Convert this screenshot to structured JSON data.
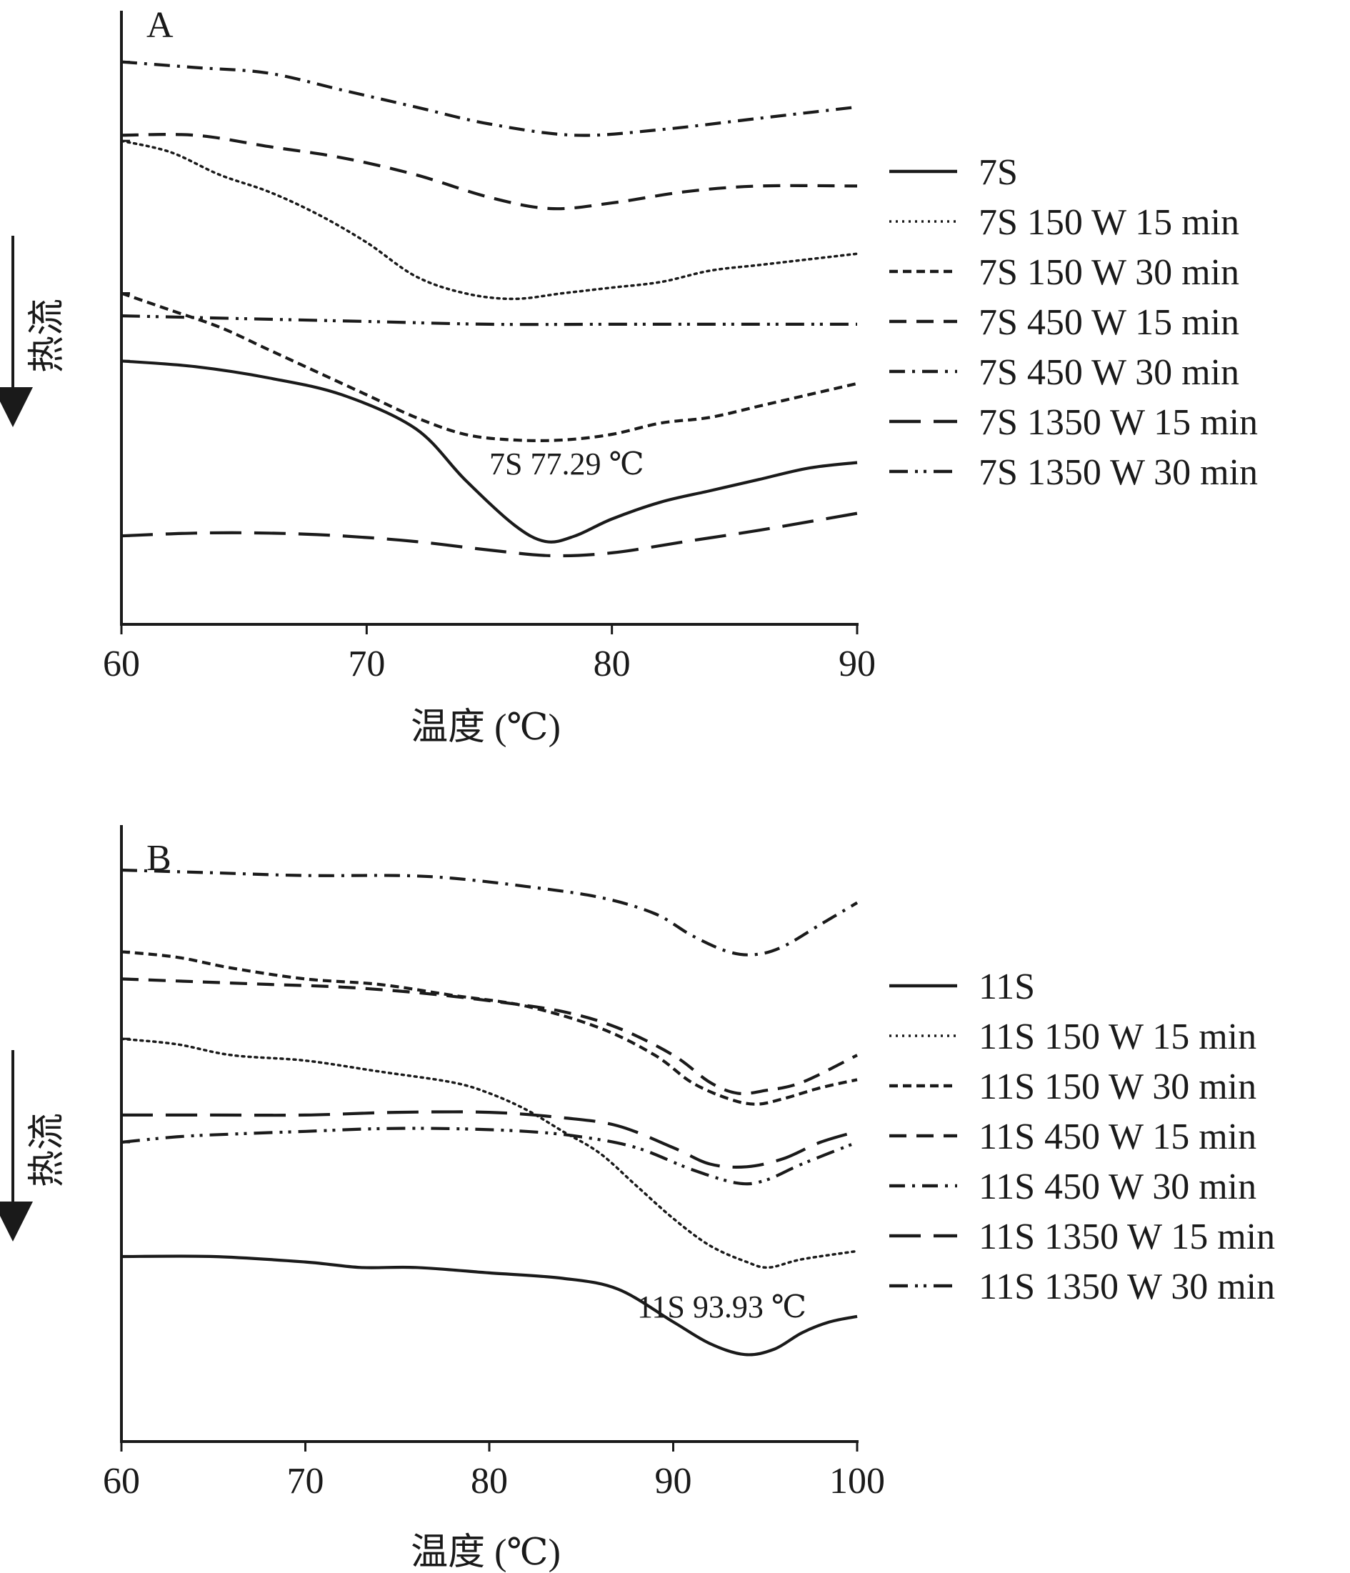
{
  "chart_data": [
    {
      "panel": "A",
      "type": "line",
      "xlabel": "温度 (℃)",
      "ylabel": "热流",
      "xlim": [
        60,
        90
      ],
      "xticks": [
        60,
        70,
        80,
        90
      ],
      "y_units": "arbitrary (relative heat flow, downward = endothermic)",
      "ylim": [
        0,
        100
      ],
      "annotation": "7S 77.29 ℃",
      "legend_position": "right",
      "series": [
        {
          "name": "7S",
          "style": "solid",
          "x": [
            60,
            63,
            66,
            69,
            72,
            74,
            76,
            77.3,
            78.5,
            80,
            82,
            84,
            86,
            88,
            90
          ],
          "y": [
            43,
            42,
            40,
            37,
            31,
            22,
            14,
            11,
            12,
            15,
            18,
            20,
            22,
            24,
            25
          ]
        },
        {
          "name": "7S 150 W 15 min",
          "style": "dotted",
          "x": [
            60,
            62,
            64,
            66,
            68,
            70,
            72,
            74,
            76,
            78,
            80,
            82,
            84,
            86,
            88,
            90
          ],
          "y": [
            82,
            80,
            76,
            73,
            69,
            64,
            58,
            55,
            54,
            55,
            56,
            57,
            59,
            60,
            61,
            62
          ]
        },
        {
          "name": "7S 150 W 30 min",
          "style": "short-dash",
          "x": [
            60,
            62,
            64,
            66,
            68,
            70,
            72,
            74,
            76,
            78,
            80,
            82,
            84,
            86,
            88,
            90
          ],
          "y": [
            55,
            52,
            49,
            45,
            41,
            37,
            33,
            30,
            29,
            29,
            30,
            32,
            33,
            35,
            37,
            39
          ]
        },
        {
          "name": "7S 450 W 15 min",
          "style": "dash",
          "x": [
            60,
            63,
            66,
            69,
            72,
            75,
            77.5,
            80,
            83,
            86,
            90
          ],
          "y": [
            83,
            83,
            81,
            79,
            76,
            72,
            70,
            71,
            73,
            74,
            74
          ]
        },
        {
          "name": "7S 450 W 30 min",
          "style": "dash-dot",
          "x": [
            60,
            63,
            66,
            69,
            72,
            75,
            78.5,
            82,
            86,
            90
          ],
          "y": [
            96,
            95,
            94,
            91,
            88,
            85,
            83,
            84,
            86,
            88
          ]
        },
        {
          "name": "7S 1350 W 15 min",
          "style": "long-dash",
          "x": [
            60,
            63,
            66,
            69,
            72,
            75,
            77.5,
            80,
            83,
            86,
            90
          ],
          "y": [
            12,
            12.5,
            12.5,
            12,
            11,
            9.5,
            8.5,
            9,
            11,
            13,
            16
          ]
        },
        {
          "name": "7S 1350 W 30 min",
          "style": "dash-dot-dot",
          "x": [
            60,
            65,
            70,
            75,
            80,
            85,
            90
          ],
          "y": [
            51,
            50.5,
            50,
            49.5,
            49.5,
            49.5,
            49.5
          ]
        }
      ]
    },
    {
      "panel": "B",
      "type": "line",
      "xlabel": "温度 (℃)",
      "ylabel": "热流",
      "xlim": [
        60,
        100
      ],
      "xticks": [
        60,
        70,
        80,
        90,
        100
      ],
      "y_units": "arbitrary (relative heat flow, downward = endothermic)",
      "ylim": [
        0,
        100
      ],
      "annotation": "11S 93.93 ℃",
      "legend_position": "right",
      "series": [
        {
          "name": "11S",
          "style": "solid",
          "x": [
            60,
            65,
            70,
            73,
            76,
            80,
            84,
            87,
            90,
            92,
            93.9,
            95.5,
            97,
            98.5,
            100
          ],
          "y": [
            29,
            29,
            28,
            27,
            27,
            26,
            25,
            23,
            17,
            13,
            11,
            12,
            15,
            17,
            18
          ]
        },
        {
          "name": "11S 150 W 15 min",
          "style": "dotted",
          "x": [
            60,
            63,
            66,
            70,
            74,
            78,
            80,
            82,
            84,
            86,
            88,
            90,
            92,
            94,
            95.2,
            97,
            100
          ],
          "y": [
            69,
            68,
            66,
            65,
            63,
            61,
            59,
            56,
            52,
            48,
            42,
            36,
            31,
            28,
            27,
            28.5,
            30
          ]
        },
        {
          "name": "11S 150 W 30 min",
          "style": "short-dash",
          "x": [
            60,
            63,
            66,
            70,
            74,
            78,
            82,
            86,
            89,
            91,
            93,
            94.5,
            96,
            98,
            100
          ],
          "y": [
            85,
            84,
            82,
            80,
            79,
            77,
            75,
            71,
            66,
            61,
            58,
            57,
            58,
            60,
            61.5
          ]
        },
        {
          "name": "11S 450 W 15 min",
          "style": "dash",
          "x": [
            60,
            64,
            68,
            72,
            76,
            80,
            84,
            87,
            90,
            92,
            93.5,
            95,
            97,
            100
          ],
          "y": [
            80,
            79.5,
            79,
            78.5,
            77.5,
            76,
            74,
            71,
            66,
            61,
            59,
            59.5,
            61,
            66
          ]
        },
        {
          "name": "11S 450 W 30 min",
          "style": "dash-dot",
          "x": [
            60,
            65,
            70,
            75,
            78,
            82,
            86,
            89,
            91,
            93,
            94.5,
            96,
            98,
            100
          ],
          "y": [
            100,
            99.5,
            99,
            99,
            98.5,
            97,
            95,
            92,
            88,
            85,
            84.5,
            86,
            90,
            94
          ]
        },
        {
          "name": "11S 1350 W 15 min",
          "style": "long-dash",
          "x": [
            60,
            65,
            70,
            75,
            80,
            84,
            87,
            90,
            92,
            94,
            96,
            98,
            100
          ],
          "y": [
            55,
            55,
            55,
            55.5,
            55.5,
            54.5,
            53,
            49,
            46,
            45.5,
            47,
            50,
            52
          ]
        },
        {
          "name": "11S 1350 W 30 min",
          "style": "dash-dot-dot",
          "x": [
            60,
            63,
            66,
            70,
            74,
            78,
            82,
            85,
            88,
            91,
            93.5,
            95,
            97,
            100
          ],
          "y": [
            50,
            51,
            51.5,
            52,
            52.5,
            52.5,
            52,
            51,
            49,
            45,
            42.5,
            43,
            46,
            50
          ]
        }
      ]
    }
  ]
}
